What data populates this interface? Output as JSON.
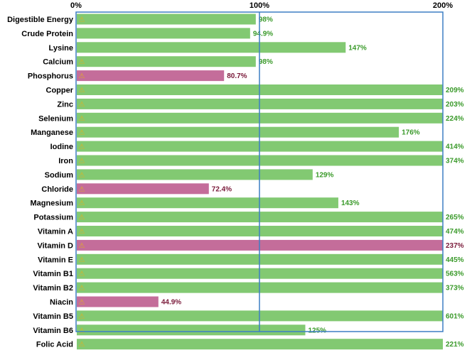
{
  "chart_data": {
    "type": "bar",
    "orientation": "horizontal",
    "x_ticks": [
      "0%",
      "100%",
      "200%"
    ],
    "xlim": [
      0,
      200
    ],
    "reference_line": 100,
    "over_range_marker": "⚠",
    "colors": {
      "ok_fill": "#82c972",
      "ok_text": "#3a9a2a",
      "low_fill": "#c46d9a",
      "low_text": "#7a1a3a",
      "frame": "#3d7fc4"
    },
    "categories": [
      "Digestible Energy",
      "Crude Protein",
      "Lysine",
      "Calcium",
      "Phosphorus",
      "Copper",
      "Zinc",
      "Selenium",
      "Manganese",
      "Iodine",
      "Iron",
      "Sodium",
      "Chloride",
      "Magnesium",
      "Potassium",
      "Vitamin A",
      "Vitamin D",
      "Vitamin E",
      "Vitamin B1",
      "Vitamin B2",
      "Niacin",
      "Vitamin B5",
      "Vitamin B6",
      "Folic Acid"
    ],
    "values": [
      98,
      94.9,
      147,
      98,
      80.7,
      209,
      203,
      224,
      176,
      414,
      374,
      129,
      72.4,
      143,
      265,
      474,
      237,
      445,
      563,
      373,
      44.9,
      601,
      125,
      221
    ],
    "value_labels": [
      "98%",
      "94.9%",
      "147%",
      "98%",
      "80.7%",
      "209%",
      "203%",
      "224%",
      "176%",
      "414%",
      "374%",
      "129%",
      "72.4%",
      "143%",
      "265%",
      "474%",
      "237%",
      "445%",
      "563%",
      "373%",
      "44.9%",
      "601%",
      "125%",
      "221%"
    ],
    "status": [
      "ok",
      "ok",
      "ok",
      "ok",
      "low",
      "ok",
      "ok",
      "ok",
      "ok",
      "ok",
      "ok",
      "ok",
      "low",
      "ok",
      "ok",
      "ok",
      "low",
      "ok",
      "ok",
      "ok",
      "low",
      "ok",
      "ok",
      "ok"
    ],
    "warning_rows": [
      "Digestible Energy",
      "Calcium",
      "Phosphorus",
      "Copper",
      "Zinc",
      "Selenium",
      "Manganese",
      "Iodine",
      "Iron",
      "Sodium",
      "Chloride",
      "Magnesium",
      "Potassium",
      "Vitamin A",
      "Vitamin D",
      "Vitamin E",
      "Vitamin B1",
      "Vitamin B2",
      "Niacin",
      "Vitamin B5",
      "Vitamin B6",
      "Folic Acid"
    ]
  }
}
